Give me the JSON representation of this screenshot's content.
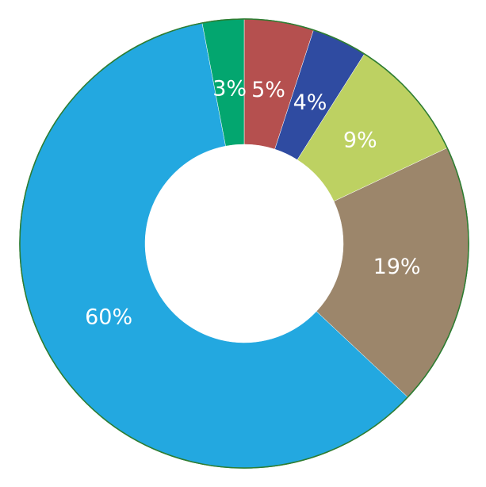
{
  "chart_data": {
    "type": "donut",
    "values": [
      5,
      4,
      9,
      19,
      60,
      3
    ],
    "value_labels": [
      "5%",
      "4%",
      "9%",
      "19%",
      "60%",
      "3%"
    ],
    "colors": [
      "#b5504f",
      "#2f4ba1",
      "#bdd162",
      "#9c866b",
      "#23a8e0",
      "#03a66f"
    ]
  }
}
